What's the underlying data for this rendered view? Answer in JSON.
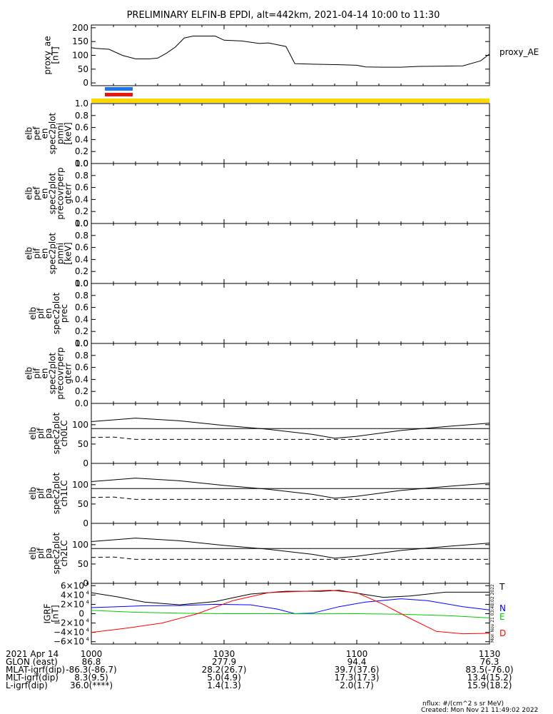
{
  "title": "PRELIMINARY ELFIN-B EPDI, alt=442km, 2021-04-14 10:00 to 11:30",
  "ae_legend": "proxy_AE",
  "ae_ylabel": [
    "proxy_ae",
    "[nT]"
  ],
  "ephemeris": {
    "date": "2021 Apr 14",
    "rows": [
      {
        "label": "GLON (east)",
        "values": [
          "86.8",
          "277.9",
          "94.4",
          "76.3"
        ]
      },
      {
        "label": "MLAT-igrf(dip)",
        "values": [
          "-86.3(-86.7)",
          "28.2(26.7)",
          "39.7(37.6)",
          "83.5(-76.0)"
        ]
      },
      {
        "label": "MLT-igrf(dip)",
        "values": [
          "8.3(9.5)",
          "5.0(4.9)",
          "17.3(17.3)",
          "13.4(15.2)"
        ]
      },
      {
        "label": "L-igrf(dip)",
        "values": [
          "36.0(****)",
          "1.4(1.3)",
          "2.0(1.7)",
          "15.9(18.2)"
        ]
      }
    ]
  },
  "footer": {
    "units": "nflux: #/(cm^2 s sr MeV)",
    "created": "Created: Mon Nov 21 11:49:02 2022"
  },
  "side_stamp": "Mon Nov 21 03:48:02 2022",
  "colors": {
    "T": "#000000",
    "N": "#0000ff",
    "E": "#00cc00",
    "D": "#ff0000",
    "bar_blue": "#1e73e8",
    "bar_red": "#e8160c",
    "bar_yellow": "#ffd800"
  },
  "chart_data": {
    "type": "line",
    "time_range_min": [
      0,
      90
    ],
    "time_ticks": [
      {
        "t": 0,
        "label": "1000"
      },
      {
        "t": 30,
        "label": "1030"
      },
      {
        "t": 60,
        "label": "1100"
      },
      {
        "t": 90,
        "label": "1130"
      }
    ],
    "panels": [
      {
        "id": "ae",
        "ylabel": [
          "proxy_ae",
          "[nT]"
        ],
        "ylim": [
          -10,
          210
        ],
        "yticks": [
          0,
          50,
          100,
          150,
          200
        ],
        "series": [
          {
            "name": "proxy_AE",
            "color": "#000000",
            "x": [
              0,
              1,
              4,
              7,
              10,
              13,
              15,
              17,
              19,
              21,
              23,
              25,
              28,
              30,
              34,
              38,
              40,
              44,
              46,
              50,
              56,
              60,
              62,
              66,
              70,
              74,
              80,
              84,
              88,
              90
            ],
            "y": [
              128,
              125,
              122,
              100,
              87,
              87,
              90,
              108,
              130,
              163,
              170,
              170,
              170,
              155,
              152,
              143,
              145,
              132,
              70,
              68,
              66,
              64,
              58,
              57,
              57,
              60,
              61,
              62,
              80,
              105
            ]
          }
        ]
      },
      {
        "id": "pef_pmni",
        "ylabel": [
          "elb",
          "pef",
          "en",
          "spec2plot",
          "pmni",
          "[keV]"
        ],
        "ylim": [
          0,
          1
        ],
        "yticks": [
          0.0,
          0.2,
          0.4,
          0.6,
          0.8,
          1.0
        ],
        "series": []
      },
      {
        "id": "pef_precovrperp",
        "ylabel": [
          "elb",
          "pef",
          "en",
          "spec2plot",
          "precovrperp",
          "gterr"
        ],
        "ylim": [
          0,
          1
        ],
        "yticks": [
          0.0,
          0.2,
          0.4,
          0.6,
          0.8,
          1.0
        ],
        "series": []
      },
      {
        "id": "pif_pmni",
        "ylabel": [
          "elb",
          "pif",
          "en",
          "spec2plot",
          "pmni",
          "[keV]"
        ],
        "ylim": [
          0,
          1
        ],
        "yticks": [
          0.0,
          0.2,
          0.4,
          0.6,
          0.8,
          1.0
        ],
        "series": []
      },
      {
        "id": "pif_prec",
        "ylabel": [
          "elb",
          "pif",
          "en",
          "spec2plot",
          "prec"
        ],
        "ylim": [
          0,
          1
        ],
        "yticks": [
          0.0,
          0.2,
          0.4,
          0.6,
          0.8,
          1.0
        ],
        "series": []
      },
      {
        "id": "pif_precovrperp",
        "ylabel": [
          "elb",
          "pif",
          "en",
          "spec2plot",
          "precovrperp",
          "gterr"
        ],
        "ylim": [
          0,
          1
        ],
        "yticks": [
          0.0,
          0.2,
          0.4,
          0.6,
          0.8,
          1.0
        ],
        "series": []
      },
      {
        "id": "pa_ch0",
        "ylabel": [
          "elb",
          "pif",
          "pa",
          "spec2plot",
          "ch0LC"
        ],
        "ylim": [
          0,
          155
        ],
        "yticks": [
          0,
          50,
          100
        ],
        "series": [
          {
            "color": "#000000",
            "style": "solid",
            "x": [
              0,
              10,
              20,
              30,
              40,
              50,
              55,
              60,
              70,
              80,
              90
            ],
            "y": [
              108,
              117,
              110,
              98,
              88,
              75,
              65,
              70,
              85,
              95,
              104
            ]
          },
          {
            "color": "#000000",
            "style": "solid",
            "x": [
              0,
              90
            ],
            "y": [
              90,
              90
            ]
          },
          {
            "color": "#000000",
            "style": "dashed",
            "x": [
              0,
              5,
              10,
              20,
              40,
              60,
              90
            ],
            "y": [
              67,
              68,
              62,
              62,
              62,
              62,
              62
            ]
          }
        ]
      },
      {
        "id": "pa_ch1",
        "ylabel": [
          "elb",
          "pif",
          "pa",
          "spec2plot",
          "ch1LC"
        ],
        "ylim": [
          0,
          155
        ],
        "yticks": [
          0,
          50,
          100
        ],
        "series": [
          {
            "color": "#000000",
            "style": "solid",
            "x": [
              0,
              10,
              20,
              30,
              40,
              50,
              55,
              60,
              70,
              80,
              90
            ],
            "y": [
              108,
              117,
              110,
              98,
              88,
              75,
              65,
              70,
              85,
              95,
              104
            ]
          },
          {
            "color": "#000000",
            "style": "solid",
            "x": [
              0,
              90
            ],
            "y": [
              90,
              90
            ]
          },
          {
            "color": "#000000",
            "style": "dashed",
            "x": [
              0,
              5,
              10,
              20,
              40,
              60,
              90
            ],
            "y": [
              67,
              68,
              62,
              62,
              62,
              62,
              62
            ]
          }
        ]
      },
      {
        "id": "pa_ch2",
        "ylabel": [
          "elb",
          "pif",
          "pa",
          "spec2plot",
          "ch2LC"
        ],
        "ylim": [
          0,
          155
        ],
        "yticks": [
          0,
          50,
          100
        ],
        "series": [
          {
            "color": "#000000",
            "style": "solid",
            "x": [
              0,
              10,
              20,
              30,
              40,
              50,
              55,
              60,
              70,
              80,
              90
            ],
            "y": [
              108,
              117,
              110,
              98,
              88,
              75,
              65,
              70,
              85,
              95,
              104
            ]
          },
          {
            "color": "#000000",
            "style": "solid",
            "x": [
              0,
              90
            ],
            "y": [
              90,
              90
            ]
          },
          {
            "color": "#000000",
            "style": "dashed",
            "x": [
              0,
              5,
              10,
              20,
              40,
              60,
              90
            ],
            "y": [
              67,
              68,
              62,
              62,
              62,
              62,
              62
            ]
          }
        ]
      },
      {
        "id": "igrf",
        "ylabel": [
          "IGRF",
          "[nT]"
        ],
        "ylim": [
          -65000,
          65000
        ],
        "yticks": [
          -60000,
          -40000,
          -20000,
          0,
          20000,
          40000,
          60000
        ],
        "ytick_mantissa": [
          "−6×10",
          "−4×10",
          "−2×10",
          "0",
          "2×10",
          "4×10",
          "6×10"
        ],
        "series": [
          {
            "name": "T",
            "color": "#000000",
            "x": [
              0,
              6,
              12,
              20,
              28,
              36,
              44,
              52,
              56,
              60,
              66,
              72,
              80,
              90
            ],
            "y": [
              45000,
              36000,
              25000,
              19000,
              26000,
              42000,
              48000,
              48000,
              50000,
              44000,
              35000,
              38000,
              46000,
              46000
            ]
          },
          {
            "name": "N",
            "color": "#0000ff",
            "x": [
              0,
              6,
              12,
              20,
              28,
              36,
              42,
              46,
              50,
              56,
              62,
              70,
              76,
              84,
              90
            ],
            "y": [
              13000,
              15000,
              17000,
              17500,
              20000,
              19000,
              10000,
              0,
              1000,
              15000,
              25000,
              32000,
              28000,
              15000,
              8000
            ]
          },
          {
            "name": "E",
            "color": "#00cc00",
            "x": [
              0,
              10,
              20,
              30,
              40,
              50,
              60,
              70,
              80,
              90
            ],
            "y": [
              7000,
              3000,
              1000,
              0,
              0,
              -500,
              0,
              -1000,
              -4000,
              -9000
            ]
          },
          {
            "name": "D",
            "color": "#ff0000",
            "x": [
              0,
              8,
              16,
              24,
              32,
              40,
              48,
              54,
              60,
              66,
              72,
              78,
              84,
              90
            ],
            "y": [
              -40000,
              -31000,
              -20000,
              0,
              28000,
              45000,
              48000,
              50000,
              45000,
              20000,
              -10000,
              -38000,
              -43000,
              -42000
            ]
          }
        ]
      }
    ]
  }
}
